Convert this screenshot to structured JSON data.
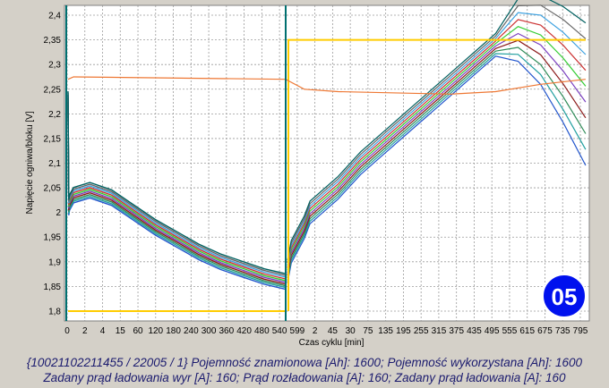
{
  "chart_data": {
    "type": "line",
    "title": "",
    "xlabel": "Czas cyklu [min]",
    "ylabel": "Napięcie ogniwa/bloku [V]",
    "ylim": [
      1.78,
      2.42
    ],
    "y_ticks": [
      1.8,
      1.85,
      1.9,
      1.95,
      2,
      2.05,
      2.1,
      2.15,
      2.2,
      2.25,
      2.3,
      2.35,
      2.4
    ],
    "x_tick_labels": [
      "0",
      "2",
      "4",
      "15",
      "60",
      "120",
      "180",
      "240",
      "300",
      "360",
      "420",
      "480",
      "540",
      "599",
      "2",
      "45",
      "30",
      "75",
      "135",
      "195",
      "255",
      "315",
      "375",
      "435",
      "495",
      "555",
      "615",
      "675",
      "735",
      "795"
    ],
    "grid": true,
    "phase_boundary_label": "599",
    "badge": "05",
    "colors": {
      "voltage_band": [
        "#2255cc",
        "#22a0a0",
        "#2e8b57",
        "#8b1a1a",
        "#7a3fbf",
        "#33cc33",
        "#cc3333",
        "#3aa0e0",
        "#666666",
        "#006060"
      ],
      "current_setpoint": "#ffcc00",
      "temperature_like": "#ee7733",
      "phase_marker": "#007070",
      "badge": "#0011ee"
    },
    "series": [
      {
        "values_discharge": [
          [
            0,
            2.23
          ],
          [
            2,
            2.01
          ],
          [
            4,
            2.02
          ],
          [
            15,
            2.035
          ],
          [
            60,
            2.045
          ],
          [
            120,
            2.03
          ],
          [
            180,
            2.0
          ],
          [
            240,
            1.97
          ],
          [
            300,
            1.945
          ],
          [
            360,
            1.92
          ],
          [
            420,
            1.9
          ],
          [
            480,
            1.885
          ],
          [
            540,
            1.87
          ],
          [
            599,
            1.86
          ]
        ],
        "values_charge": [
          [
            0,
            1.88
          ],
          [
            10,
            1.92
          ],
          [
            45,
            1.97
          ],
          [
            60,
            2.0
          ],
          [
            135,
            2.05
          ],
          [
            195,
            2.1
          ],
          [
            255,
            2.14
          ],
          [
            315,
            2.18
          ],
          [
            375,
            2.22
          ],
          [
            435,
            2.26
          ],
          [
            495,
            2.3
          ],
          [
            555,
            2.34
          ],
          [
            615,
            2.37
          ],
          [
            675,
            2.35
          ],
          [
            735,
            2.3
          ],
          [
            795,
            2.24
          ]
        ]
      },
      {
        "current_setpoint": [
          [
            0,
            1.8
          ],
          [
            599,
            1.8
          ],
          [
            599.5,
            2.35
          ],
          [
            795,
            2.35
          ]
        ]
      },
      {
        "orange_trace": [
          [
            0,
            2.27
          ],
          [
            15,
            2.275
          ],
          [
            599,
            2.27
          ],
          [
            45,
            2.25
          ],
          [
            135,
            2.245
          ],
          [
            435,
            2.24
          ],
          [
            555,
            2.245
          ],
          [
            675,
            2.26
          ],
          [
            795,
            2.27
          ]
        ]
      }
    ]
  },
  "footer": {
    "line1": "{10021102211455 / 22005 / 1} Pojemność znamionowa [Ah]: 1600;  Pojemność wykorzystana [Ah]: 1600",
    "line2": "Zadany prąd ładowania wyr [A]: 160;  Prąd rozładowania [A]: 160;  Zadany prąd ładowania [A]: 160"
  }
}
